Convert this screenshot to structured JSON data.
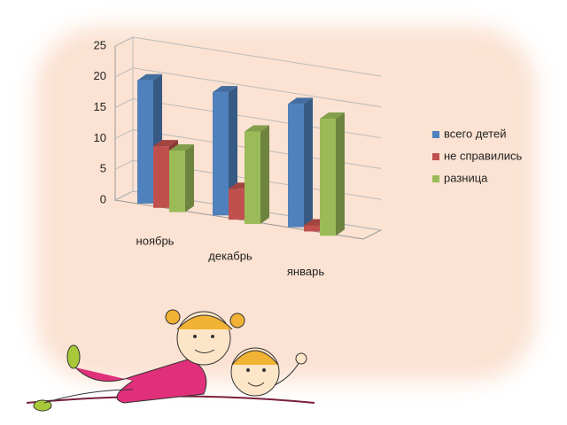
{
  "chart_data": {
    "type": "bar3d",
    "categories": [
      "ноябрь",
      "декабрь",
      "январь"
    ],
    "series": [
      {
        "name": "всего детей",
        "color": "#4f81bd",
        "values": [
          20,
          20,
          20
        ]
      },
      {
        "name": "не справились",
        "color": "#c0504d",
        "values": [
          10,
          5,
          1
        ]
      },
      {
        "name": "разница",
        "color": "#9bbb59",
        "values": [
          10,
          15,
          19
        ]
      }
    ],
    "ylim": [
      0,
      25
    ],
    "yticks": [
      0,
      5,
      10,
      15,
      20,
      25
    ],
    "grid": true,
    "legend": "right"
  }
}
